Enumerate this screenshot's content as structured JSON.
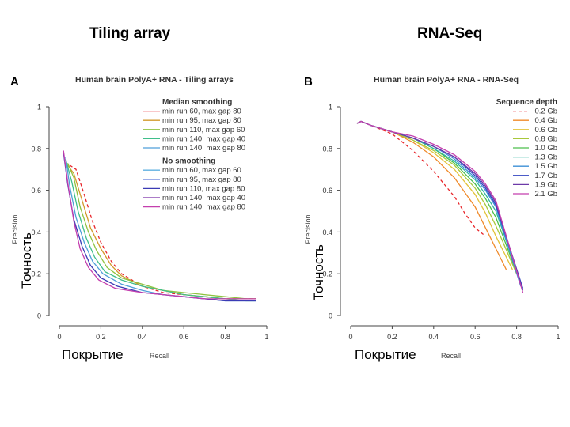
{
  "slide_titles": {
    "left": "Tiling array",
    "right": "RNA-Seq"
  },
  "overlay_labels": {
    "y_left": "Точность",
    "y_right": "Точность",
    "x_left": "Покрытие",
    "x_right": "Покрытие"
  },
  "chart_data": [
    {
      "type": "line",
      "panel_letter": "A",
      "title": "Human brain PolyA+ RNA - Tiling arrays",
      "xlabel": "Recall",
      "ylabel": "Precision",
      "xlim": [
        0,
        1
      ],
      "ylim": [
        0,
        1
      ],
      "x_ticks": [
        "0",
        "0.2",
        "0.4",
        "0.6",
        "0.8",
        "1"
      ],
      "y_ticks": [
        "0",
        "0.2",
        "0.4",
        "0.6",
        "0.8",
        "1"
      ],
      "grid": false,
      "legend_position": "top-right",
      "legend_groups": [
        {
          "heading": "Median smoothing",
          "entries": [
            {
              "label": "min run 60, max gap 80",
              "color": "#e8262b"
            },
            {
              "label": "min run 95, max gap 80",
              "color": "#d39a2c"
            },
            {
              "label": "min run 110, max gap 60",
              "color": "#8fc33f"
            },
            {
              "label": "min run 140, max gap 40",
              "color": "#3fbf8a"
            },
            {
              "label": "min run 140, max gap 80",
              "color": "#4f9fd9"
            }
          ]
        },
        {
          "heading": "No smoothing",
          "entries": [
            {
              "label": "min run 60, max gap 60",
              "color": "#5fb0e0"
            },
            {
              "label": "min run 95, max gap 80",
              "color": "#3a5bd0"
            },
            {
              "label": "min run 110, max gap 80",
              "color": "#3b3bb5"
            },
            {
              "label": "min run 140, max gap 40",
              "color": "#7a2fa8"
            },
            {
              "label": "min run 140, max gap 80",
              "color": "#c43fae"
            }
          ]
        }
      ],
      "series": [
        {
          "color": "#e8262b",
          "dashed": true,
          "x": [
            0.05,
            0.08,
            0.12,
            0.16,
            0.2,
            0.25,
            0.3,
            0.4,
            0.5,
            0.6,
            0.7,
            0.8,
            0.9,
            0.95
          ],
          "y": [
            0.72,
            0.7,
            0.58,
            0.45,
            0.35,
            0.26,
            0.2,
            0.14,
            0.11,
            0.1,
            0.09,
            0.08,
            0.08,
            0.08
          ]
        },
        {
          "color": "#d39a2c",
          "x": [
            0.04,
            0.07,
            0.11,
            0.15,
            0.2,
            0.25,
            0.3,
            0.4,
            0.5,
            0.6,
            0.7,
            0.8,
            0.9,
            0.95
          ],
          "y": [
            0.72,
            0.68,
            0.55,
            0.42,
            0.32,
            0.24,
            0.19,
            0.14,
            0.12,
            0.1,
            0.09,
            0.08,
            0.08,
            0.08
          ]
        },
        {
          "color": "#8fc33f",
          "x": [
            0.04,
            0.07,
            0.1,
            0.14,
            0.18,
            0.23,
            0.3,
            0.4,
            0.5,
            0.6,
            0.7,
            0.8,
            0.9,
            0.95
          ],
          "y": [
            0.73,
            0.66,
            0.52,
            0.4,
            0.31,
            0.23,
            0.18,
            0.15,
            0.12,
            0.11,
            0.1,
            0.09,
            0.08,
            0.08
          ]
        },
        {
          "color": "#3fbf8a",
          "x": [
            0.03,
            0.06,
            0.09,
            0.13,
            0.17,
            0.22,
            0.3,
            0.4,
            0.5,
            0.6,
            0.7,
            0.8,
            0.9,
            0.95
          ],
          "y": [
            0.75,
            0.64,
            0.5,
            0.37,
            0.28,
            0.21,
            0.17,
            0.14,
            0.12,
            0.1,
            0.09,
            0.08,
            0.07,
            0.07
          ]
        },
        {
          "color": "#4f9fd9",
          "x": [
            0.03,
            0.05,
            0.08,
            0.12,
            0.16,
            0.21,
            0.3,
            0.4,
            0.5,
            0.6,
            0.7,
            0.8,
            0.9,
            0.95
          ],
          "y": [
            0.76,
            0.62,
            0.47,
            0.35,
            0.26,
            0.2,
            0.15,
            0.12,
            0.1,
            0.09,
            0.08,
            0.07,
            0.07,
            0.07
          ]
        },
        {
          "color": "#3b3bb5",
          "x": [
            0.02,
            0.04,
            0.07,
            0.11,
            0.15,
            0.2,
            0.28,
            0.4,
            0.5,
            0.6,
            0.7,
            0.8,
            0.9,
            0.95
          ],
          "y": [
            0.78,
            0.63,
            0.46,
            0.33,
            0.24,
            0.18,
            0.14,
            0.11,
            0.1,
            0.09,
            0.08,
            0.07,
            0.07,
            0.07
          ]
        },
        {
          "color": "#c43fae",
          "x": [
            0.02,
            0.04,
            0.07,
            0.1,
            0.14,
            0.19,
            0.27,
            0.4,
            0.5,
            0.6,
            0.7,
            0.8,
            0.9,
            0.95
          ],
          "y": [
            0.79,
            0.64,
            0.45,
            0.32,
            0.23,
            0.17,
            0.13,
            0.11,
            0.1,
            0.09,
            0.08,
            0.08,
            0.08,
            0.08
          ]
        }
      ]
    },
    {
      "type": "line",
      "panel_letter": "B",
      "title": "Human brain PolyA+ RNA - RNA-Seq",
      "xlabel": "Recall",
      "ylabel": "Precision",
      "xlim": [
        0,
        1
      ],
      "ylim": [
        0,
        1
      ],
      "x_ticks": [
        "0",
        "0.2",
        "0.4",
        "0.6",
        "0.8",
        "1"
      ],
      "y_ticks": [
        "0",
        "0.2",
        "0.4",
        "0.6",
        "0.8",
        "1"
      ],
      "grid": false,
      "legend_position": "top-right",
      "legend_heading": "Sequence depth",
      "series": [
        {
          "name": "0.2 Gb",
          "color": "#e8262b",
          "dashed": true,
          "x": [
            0.03,
            0.05,
            0.1,
            0.2,
            0.3,
            0.4,
            0.5,
            0.55,
            0.6,
            0.65
          ],
          "y": [
            0.92,
            0.93,
            0.91,
            0.87,
            0.79,
            0.69,
            0.57,
            0.49,
            0.42,
            0.38
          ]
        },
        {
          "name": "0.4 Gb",
          "color": "#f08a2a",
          "x": [
            0.03,
            0.05,
            0.1,
            0.2,
            0.3,
            0.4,
            0.5,
            0.6,
            0.65,
            0.7,
            0.75
          ],
          "y": [
            0.92,
            0.93,
            0.91,
            0.88,
            0.83,
            0.76,
            0.66,
            0.52,
            0.42,
            0.32,
            0.22
          ]
        },
        {
          "name": "0.6 Gb",
          "color": "#e3c23a",
          "x": [
            0.03,
            0.05,
            0.1,
            0.2,
            0.3,
            0.4,
            0.5,
            0.6,
            0.65,
            0.7,
            0.78
          ],
          "y": [
            0.92,
            0.93,
            0.91,
            0.88,
            0.84,
            0.78,
            0.7,
            0.58,
            0.49,
            0.38,
            0.22
          ]
        },
        {
          "name": "0.8 Gb",
          "color": "#a8c83a",
          "x": [
            0.03,
            0.05,
            0.1,
            0.2,
            0.3,
            0.4,
            0.5,
            0.6,
            0.65,
            0.7,
            0.8
          ],
          "y": [
            0.92,
            0.93,
            0.91,
            0.88,
            0.84,
            0.79,
            0.72,
            0.61,
            0.53,
            0.43,
            0.2
          ]
        },
        {
          "name": "1.0 Gb",
          "color": "#4cbf4c",
          "x": [
            0.03,
            0.05,
            0.1,
            0.2,
            0.3,
            0.4,
            0.5,
            0.6,
            0.65,
            0.7,
            0.81
          ],
          "y": [
            0.92,
            0.93,
            0.91,
            0.88,
            0.85,
            0.8,
            0.73,
            0.63,
            0.56,
            0.47,
            0.18
          ]
        },
        {
          "name": "1.3 Gb",
          "color": "#2fb5a0",
          "x": [
            0.03,
            0.05,
            0.1,
            0.2,
            0.3,
            0.4,
            0.5,
            0.6,
            0.65,
            0.7,
            0.82
          ],
          "y": [
            0.92,
            0.93,
            0.91,
            0.88,
            0.85,
            0.8,
            0.74,
            0.65,
            0.58,
            0.5,
            0.16
          ]
        },
        {
          "name": "1.5 Gb",
          "color": "#3b8fd6",
          "x": [
            0.03,
            0.05,
            0.1,
            0.2,
            0.3,
            0.4,
            0.5,
            0.6,
            0.65,
            0.7,
            0.82
          ],
          "y": [
            0.92,
            0.93,
            0.91,
            0.88,
            0.85,
            0.81,
            0.75,
            0.66,
            0.6,
            0.52,
            0.14
          ]
        },
        {
          "name": "1.7 Gb",
          "color": "#3245c0",
          "x": [
            0.03,
            0.05,
            0.1,
            0.2,
            0.3,
            0.4,
            0.5,
            0.6,
            0.65,
            0.7,
            0.83
          ],
          "y": [
            0.92,
            0.93,
            0.91,
            0.88,
            0.85,
            0.81,
            0.76,
            0.67,
            0.61,
            0.53,
            0.13
          ]
        },
        {
          "name": "1.9 Gb",
          "color": "#6d3aa8",
          "x": [
            0.03,
            0.05,
            0.1,
            0.2,
            0.3,
            0.4,
            0.5,
            0.6,
            0.65,
            0.7,
            0.83
          ],
          "y": [
            0.92,
            0.93,
            0.91,
            0.88,
            0.85,
            0.81,
            0.76,
            0.68,
            0.62,
            0.54,
            0.12
          ]
        },
        {
          "name": "2.1 Gb",
          "color": "#c43fae",
          "x": [
            0.03,
            0.05,
            0.1,
            0.2,
            0.3,
            0.4,
            0.5,
            0.6,
            0.65,
            0.7,
            0.83
          ],
          "y": [
            0.92,
            0.93,
            0.91,
            0.88,
            0.86,
            0.82,
            0.77,
            0.69,
            0.63,
            0.55,
            0.11
          ]
        }
      ]
    }
  ]
}
